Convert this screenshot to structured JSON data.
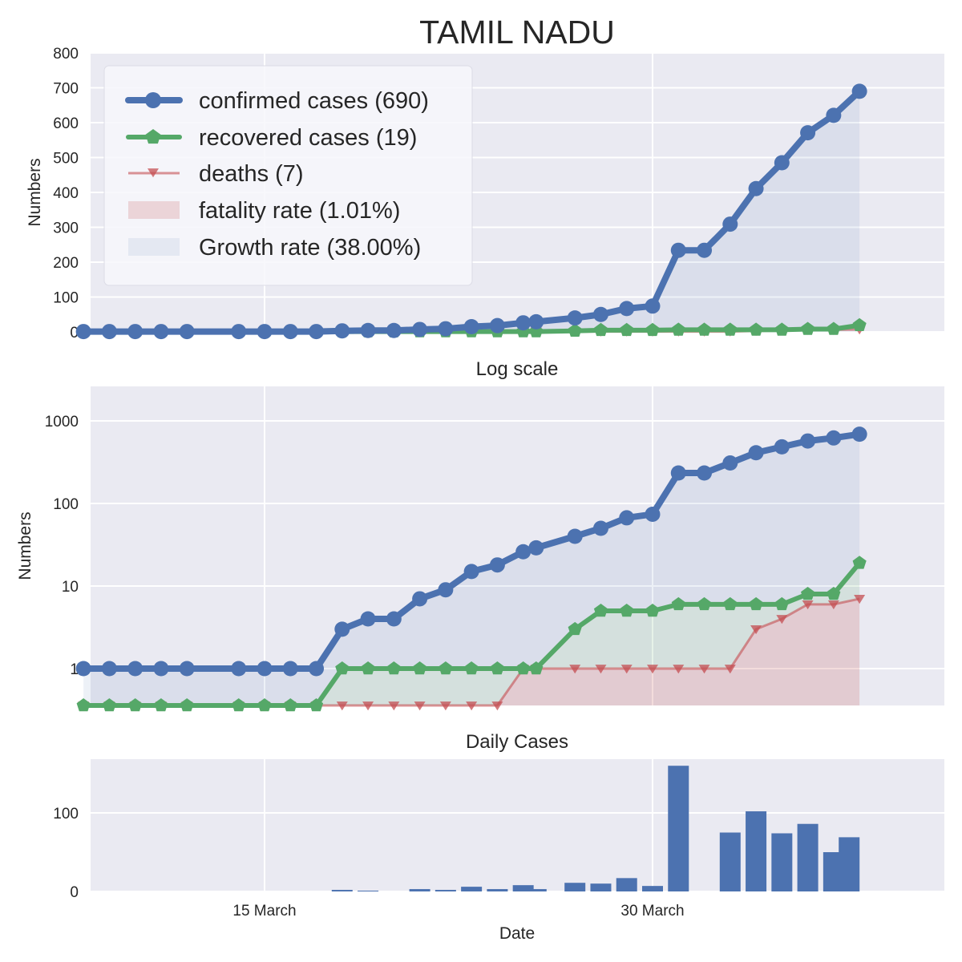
{
  "chart_data": [
    {
      "type": "line",
      "title": "TAMIL NADU",
      "xlabel": "",
      "ylabel": "Numbers",
      "ylim": [
        0,
        800
      ],
      "yticks": [
        0,
        100,
        200,
        300,
        400,
        500,
        600,
        700,
        800
      ],
      "grid": true,
      "legend_position": "top-left",
      "legend": [
        "confirmed cases (690)",
        "recovered cases (19)",
        "deaths (7)",
        "fatality rate (1.01%)",
        "Growth rate (38.00%)"
      ],
      "x": [
        8,
        9,
        10,
        11,
        12,
        14,
        15,
        16,
        17,
        18,
        19,
        20,
        21,
        22,
        23,
        24,
        25,
        25.5,
        27,
        28,
        29,
        30,
        31,
        32,
        33,
        34,
        35,
        36,
        37,
        38
      ],
      "series": [
        {
          "name": "confirmed cases",
          "color": "#4c72b0",
          "values": [
            1,
            1,
            1,
            1,
            1,
            1,
            1,
            1,
            1,
            3,
            4,
            4,
            7,
            9,
            15,
            18,
            26,
            29,
            40,
            50,
            67,
            74,
            234,
            234,
            309,
            411,
            485,
            571,
            621,
            690
          ]
        },
        {
          "name": "recovered cases",
          "color": "#55a868",
          "values": [
            0,
            0,
            0,
            0,
            0,
            0,
            0,
            0,
            0,
            1,
            1,
            1,
            1,
            1,
            1,
            1,
            1,
            1,
            3,
            5,
            5,
            5,
            6,
            6,
            6,
            6,
            6,
            8,
            8,
            19
          ]
        },
        {
          "name": "deaths",
          "color": "#c44e52",
          "values": [
            0,
            0,
            0,
            0,
            0,
            0,
            0,
            0,
            0,
            0,
            0,
            0,
            0,
            0,
            0,
            0,
            1,
            1,
            1,
            1,
            1,
            1,
            1,
            1,
            1,
            3,
            4,
            6,
            6,
            7
          ]
        }
      ]
    },
    {
      "type": "line",
      "title": "Log scale",
      "xlabel": "",
      "ylabel": "Numbers",
      "yscale": "log",
      "yticks": [
        1,
        10,
        100,
        1000
      ],
      "ytick_labels": [
        "1",
        "10",
        "100",
        "1000"
      ],
      "grid": true
    },
    {
      "type": "bar",
      "title": "Daily Cases",
      "xlabel": "Date",
      "ylabel": "",
      "yticks": [
        0,
        100
      ],
      "xtick_labels": [
        "15 March",
        "30 March"
      ],
      "x": [
        18,
        19,
        21,
        22,
        23,
        24,
        25,
        25.5,
        27,
        28,
        29,
        30,
        31,
        33,
        34,
        35,
        36,
        37,
        37.6
      ],
      "values": [
        2,
        1,
        3,
        2,
        6,
        3,
        8,
        3,
        11,
        10,
        17,
        7,
        160,
        75,
        102,
        74,
        86,
        50,
        69
      ],
      "color": "#4c72b0"
    }
  ]
}
